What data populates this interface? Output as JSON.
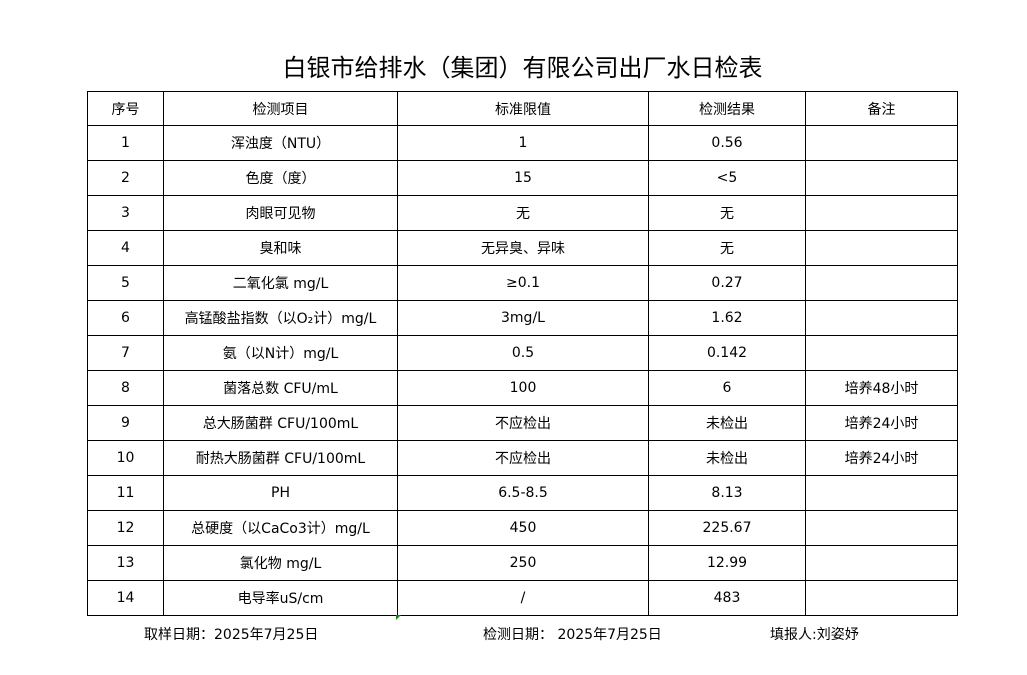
{
  "title": "白银市给排水（集团）有限公司出厂水日检表",
  "columns": [
    "序号",
    "检测项目",
    "标准限值",
    "检测结果",
    "备注"
  ],
  "rows": [
    [
      "1",
      "浑浊度（NTU）",
      "1",
      "0.56",
      ""
    ],
    [
      "2",
      "色度（度）",
      "15",
      "<5",
      ""
    ],
    [
      "3",
      "肉眼可见物",
      "无",
      "无",
      ""
    ],
    [
      "4",
      "臭和味",
      "无异臭、异味",
      "无",
      ""
    ],
    [
      "5",
      "二氧化氯 mg/L",
      "≥0.1",
      "0.27",
      ""
    ],
    [
      "6",
      "高锰酸盐指数（以O₂计）mg/L",
      "3mg/L",
      "1.62",
      ""
    ],
    [
      "7",
      "氨（以N计）mg/L",
      "0.5",
      "0.142",
      ""
    ],
    [
      "8",
      "菌落总数 CFU/mL",
      "100",
      "6",
      "培养48小时"
    ],
    [
      "9",
      "总大肠菌群 CFU/100mL",
      "不应检出",
      "未检出",
      "培养24小时"
    ],
    [
      "10",
      "耐热大肠菌群 CFU/100mL",
      "不应检出",
      "未检出",
      "培养24小时"
    ],
    [
      "11",
      "PH",
      "6.5-8.5",
      "8.13",
      ""
    ],
    [
      "12",
      "总硬度（以CaCo3计）mg/L",
      "450",
      "225.67",
      ""
    ],
    [
      "13",
      "氯化物 mg/L",
      "250",
      "12.99",
      ""
    ],
    [
      "14",
      "电导率uS/cm",
      "/",
      "483",
      ""
    ]
  ],
  "footer": {
    "sampling_date": "取样日期：2025年7月25日",
    "test_date": "检测日期： 2025年7月25日",
    "reporter": "填报人:刘姿妤"
  }
}
